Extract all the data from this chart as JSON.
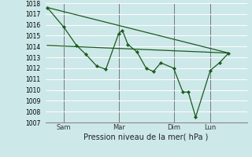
{
  "xlabel": "Pression niveau de la mer( hPa )",
  "ylim": [
    1007,
    1018
  ],
  "yticks": [
    1007,
    1008,
    1009,
    1010,
    1011,
    1012,
    1013,
    1014,
    1015,
    1016,
    1017,
    1018
  ],
  "bg_color": "#cce8e8",
  "grid_color": "#ffffff",
  "line_color": "#1a5c1a",
  "day_labels": [
    "Sam",
    "Mar",
    "Dim",
    "Lun"
  ],
  "day_positions": [
    1,
    4,
    7,
    9
  ],
  "vlines_x": [
    1,
    4,
    7,
    9
  ],
  "xlim": [
    0,
    11
  ],
  "series_x": [
    0.1,
    1.0,
    1.7,
    2.2,
    2.8,
    3.3,
    4.0,
    4.2,
    4.5,
    5.0,
    5.5,
    5.9,
    6.3,
    7.0,
    7.5,
    7.8,
    8.2,
    9.0,
    9.5,
    10.0
  ],
  "series_y": [
    1017.6,
    1015.8,
    1014.1,
    1013.3,
    1012.2,
    1011.9,
    1015.2,
    1015.5,
    1014.2,
    1013.5,
    1012.0,
    1011.7,
    1012.5,
    1012.0,
    1009.8,
    1009.8,
    1007.5,
    1011.8,
    1012.5,
    1013.4
  ],
  "trend1_x": [
    0.1,
    10.0
  ],
  "trend1_y": [
    1017.6,
    1013.4
  ],
  "trend2_x": [
    0.1,
    10.0
  ],
  "trend2_y": [
    1014.1,
    1013.4
  ]
}
